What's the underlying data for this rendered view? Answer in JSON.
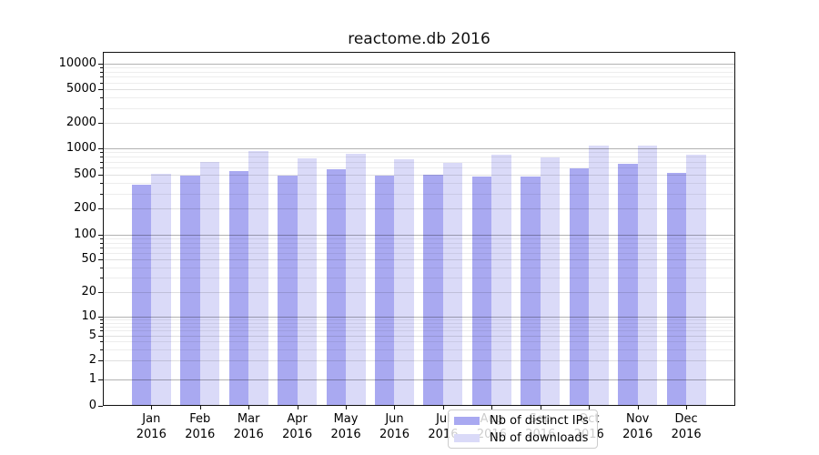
{
  "title": "reactome.db 2016",
  "legend": {
    "items": [
      {
        "label": "Nb of distinct IPs",
        "color": "#a9a9f1"
      },
      {
        "label": "Nb of downloads",
        "color": "#dadaf8"
      }
    ]
  },
  "colors": {
    "bar_distinct_ips": "#a9a9f1",
    "bar_downloads": "#dadaf8",
    "grid_major": "#b3b3b3",
    "grid_minor": "#ededed",
    "axis": "#111111"
  },
  "chart_data": {
    "type": "bar",
    "title": "reactome.db 2016",
    "categories": [
      "Jan 2016",
      "Feb 2016",
      "Mar 2016",
      "Apr 2016",
      "May 2016",
      "Jun 2016",
      "Jul 2016",
      "Aug 2016",
      "Sep 2016",
      "Oct 2016",
      "Nov 2016",
      "Dec 2016"
    ],
    "series": [
      {
        "name": "Nb of distinct IPs",
        "color": "#a9a9f1",
        "values": [
          380,
          485,
          545,
          485,
          575,
          480,
          490,
          470,
          475,
          590,
          670,
          520
        ]
      },
      {
        "name": "Nb of downloads",
        "color": "#dadaf8",
        "values": [
          505,
          695,
          930,
          770,
          860,
          750,
          685,
          845,
          780,
          1080,
          1090,
          850
        ]
      }
    ],
    "xlabel": "",
    "ylabel": "",
    "yscale": "symlog",
    "ylim": [
      0,
      13800
    ],
    "y_ticks": [
      0,
      1,
      2,
      5,
      10,
      20,
      50,
      100,
      200,
      500,
      1000,
      2000,
      5000,
      10000
    ],
    "y_tick_labels": [
      "0",
      "1",
      "2",
      "5",
      "10",
      "20",
      "50",
      "100",
      "200",
      "500",
      "1000",
      "2000",
      "5000",
      "10000"
    ],
    "grid": true,
    "legend_position": "lower-center-inside"
  }
}
